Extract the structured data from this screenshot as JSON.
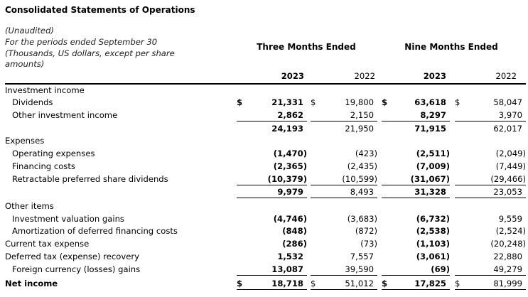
{
  "title": "Consolidated Statements of Operations",
  "subtitle_lines": [
    "(Unaudited)",
    "For the periods ended September 30",
    "(Thousands, US dollars, except per share",
    "amounts)"
  ],
  "column_groups": [
    "Three Months Ended",
    "Nine Months Ended"
  ],
  "years": [
    "2023",
    "2022",
    "2023",
    "2022"
  ],
  "rows": [
    {
      "label": "Investment income",
      "indent": false,
      "bold": false,
      "values": [
        "",
        "",
        "",
        ""
      ]
    },
    {
      "label": "Dividends",
      "indent": true,
      "bold": false,
      "currency": "$",
      "values": [
        "21,331",
        "19,800",
        "63,618",
        "58,047"
      ]
    },
    {
      "label": "Other investment income",
      "indent": true,
      "bold": false,
      "values": [
        "2,862",
        "2,150",
        "8,297",
        "3,970"
      ],
      "underline": true
    },
    {
      "label": "",
      "indent": false,
      "bold": false,
      "values": [
        "24,193",
        "21,950",
        "71,915",
        "62,017"
      ]
    },
    {
      "label": "Expenses",
      "indent": false,
      "bold": false,
      "values": [
        "",
        "",
        "",
        ""
      ]
    },
    {
      "label": "Operating expenses",
      "indent": true,
      "bold": false,
      "values": [
        "(1,470)",
        "(423)",
        "(2,511)",
        "(2,049)"
      ]
    },
    {
      "label": "Financing costs",
      "indent": true,
      "bold": false,
      "values": [
        "(2,365)",
        "(2,435)",
        "(7,009)",
        "(7,449)"
      ]
    },
    {
      "label": "Retractable preferred share dividends",
      "indent": true,
      "bold": false,
      "values": [
        "(10,379)",
        "(10,599)",
        "(31,067)",
        "(29,466)"
      ],
      "underline": true
    },
    {
      "label": "",
      "indent": false,
      "bold": false,
      "values": [
        "9,979",
        "8,493",
        "31,328",
        "23,053"
      ],
      "underline": true
    },
    {
      "label": "Other items",
      "indent": false,
      "bold": false,
      "values": [
        "",
        "",
        "",
        ""
      ]
    },
    {
      "label": "Investment valuation gains",
      "indent": true,
      "bold": false,
      "values": [
        "(4,746)",
        "(3,683)",
        "(6,732)",
        "9,559"
      ]
    },
    {
      "label": "Amortization of deferred financing costs",
      "indent": true,
      "bold": false,
      "values": [
        "(848)",
        "(872)",
        "(2,538)",
        "(2,524)"
      ]
    },
    {
      "label": "Current tax expense",
      "indent": false,
      "bold": false,
      "values": [
        "(286)",
        "(73)",
        "(1,103)",
        "(20,248)"
      ]
    },
    {
      "label": "Deferred tax (expense) recovery",
      "indent": false,
      "bold": false,
      "values": [
        "1,532",
        "7,557",
        "(3,061)",
        "22,880"
      ]
    },
    {
      "label": "Foreign currency (losses) gains",
      "indent": true,
      "bold": false,
      "values": [
        "13,087",
        "39,590",
        "(69)",
        "49,279"
      ],
      "underline": true
    },
    {
      "label": "Net income",
      "indent": false,
      "bold": true,
      "currency": "$",
      "values": [
        "18,718",
        "51,012",
        "17,825",
        "81,999"
      ],
      "underline": true
    }
  ]
}
